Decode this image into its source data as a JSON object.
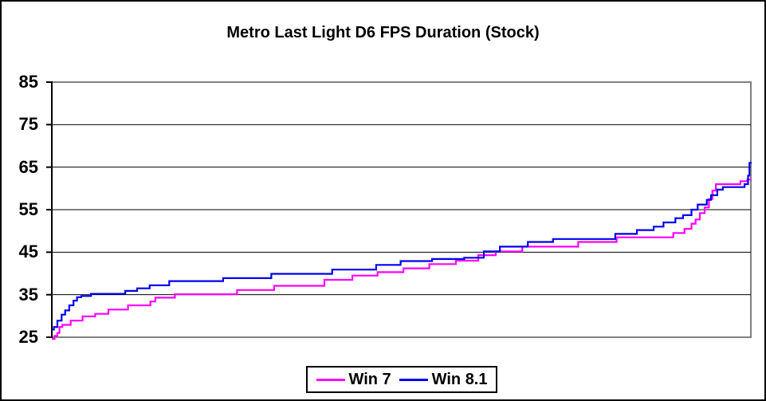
{
  "window": {
    "background": "#FFFFFF",
    "outer_border_color": "#000000"
  },
  "colors": {
    "plot_border": "#808080",
    "axis_line": "#000000",
    "gridline": "#000000",
    "title_text": "#000000",
    "win7_line": "#FF00FF",
    "win81_line": "#0000EE"
  },
  "legend": {
    "items": [
      {
        "label": "Win 7",
        "color": "#FF00FF"
      },
      {
        "label": "Win 8.1",
        "color": "#0000EE"
      }
    ]
  },
  "chart_data": {
    "type": "line",
    "title": "Metro Last Light D6 FPS Duration (Stock)",
    "xlabel": "",
    "ylabel": "",
    "x_axis": "percent of run (0-100, unlabeled)",
    "x_range": [
      0,
      100
    ],
    "ylim": [
      25,
      85
    ],
    "y_ticks": [
      85,
      75,
      65,
      55,
      45,
      35,
      25
    ],
    "grid": "horizontal-black",
    "legend_position": "bottom-center",
    "line_style": "stepped percentile curves, ascending",
    "series": [
      {
        "name": "Win 7",
        "color": "#FF00FF",
        "step_points": [
          [
            0,
            24.6
          ],
          [
            0.4,
            25.3
          ],
          [
            0.8,
            26.0
          ],
          [
            1.1,
            27.4
          ],
          [
            1.5,
            27.9
          ],
          [
            2.7,
            28.9
          ],
          [
            4.4,
            29.9
          ],
          [
            6.2,
            30.5
          ],
          [
            8.1,
            31.5
          ],
          [
            10.9,
            32.5
          ],
          [
            14.1,
            33.4
          ],
          [
            14.8,
            34.3
          ],
          [
            17.6,
            35.1
          ],
          [
            26.5,
            36.1
          ],
          [
            31.8,
            37.1
          ],
          [
            39,
            38.5
          ],
          [
            43,
            39.5
          ],
          [
            46.6,
            40.3
          ],
          [
            50.3,
            41.2
          ],
          [
            54,
            42.2
          ],
          [
            57.8,
            43.0
          ],
          [
            61,
            44.3
          ],
          [
            63.5,
            45.2
          ],
          [
            67.3,
            46.3
          ],
          [
            75.3,
            47.4
          ],
          [
            80.8,
            48.5
          ],
          [
            88.9,
            49.5
          ],
          [
            90.5,
            50.5
          ],
          [
            91.5,
            51.7
          ],
          [
            92.1,
            52.7
          ],
          [
            92.7,
            54.2
          ],
          [
            93.4,
            55.5
          ],
          [
            94,
            57.5
          ],
          [
            94.5,
            59.5
          ],
          [
            95,
            61.0
          ],
          [
            98.5,
            61.7
          ],
          [
            99.5,
            62.1
          ],
          [
            100,
            62.2
          ]
        ]
      },
      {
        "name": "Win 8.1",
        "color": "#0000EE",
        "step_points": [
          [
            0,
            26.8
          ],
          [
            0.3,
            27.4
          ],
          [
            0.8,
            28.9
          ],
          [
            1.4,
            30.3
          ],
          [
            1.9,
            31.3
          ],
          [
            2.5,
            32.5
          ],
          [
            3.1,
            33.6
          ],
          [
            3.6,
            34.4
          ],
          [
            4.2,
            34.7
          ],
          [
            5.6,
            35.2
          ],
          [
            10.5,
            35.9
          ],
          [
            12.2,
            36.5
          ],
          [
            14,
            37.2
          ],
          [
            16.8,
            38.2
          ],
          [
            24.5,
            38.9
          ],
          [
            31.4,
            39.9
          ],
          [
            40.1,
            40.9
          ],
          [
            46.4,
            42.0
          ],
          [
            49.9,
            42.9
          ],
          [
            54.4,
            43.4
          ],
          [
            59,
            43.7
          ],
          [
            61.8,
            45.2
          ],
          [
            64.1,
            46.3
          ],
          [
            68.1,
            47.4
          ],
          [
            71.7,
            48.1
          ],
          [
            80.6,
            49.3
          ],
          [
            83.7,
            50.2
          ],
          [
            86.1,
            51.0
          ],
          [
            87.5,
            52.0
          ],
          [
            89.2,
            53.0
          ],
          [
            90.3,
            53.7
          ],
          [
            91.5,
            55.0
          ],
          [
            92.4,
            56.2
          ],
          [
            93.7,
            57.3
          ],
          [
            94.3,
            58.4
          ],
          [
            95.2,
            59.7
          ],
          [
            96,
            60.3
          ],
          [
            99.1,
            61.0
          ],
          [
            99.6,
            63.0
          ],
          [
            99.8,
            66.0
          ],
          [
            100,
            66.2
          ]
        ]
      }
    ]
  }
}
